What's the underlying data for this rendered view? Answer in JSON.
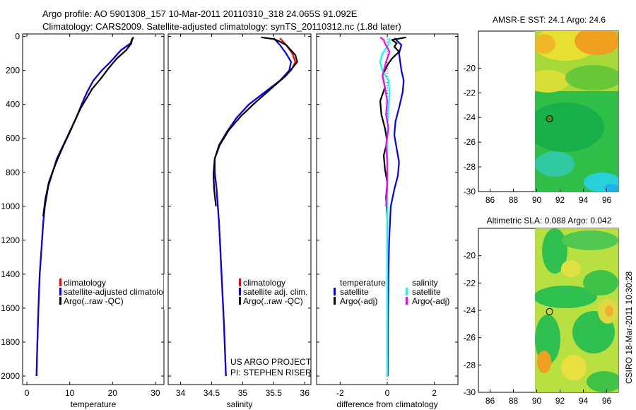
{
  "header": {
    "line1": "Argo profile: AO 5901308_157 10-Mar-2011 20110310_318 24.065S 91.092E",
    "line2": "Climatology: CARS2009. Satellite-adjusted climatology: synTS_20110312.nc (1.8d later)"
  },
  "side_label": "CSIRO 18-Mar-2011 10:30:28",
  "credit": {
    "line1": "US ARGO PROJECT",
    "line2": "PI: STEPHEN RISER"
  },
  "colors": {
    "red": "#ff0000",
    "blue": "#0000ff",
    "black": "#000000",
    "cyan": "#00ffff",
    "magenta": "#ff00ff"
  },
  "chart_data": [
    {
      "id": "temperature",
      "type": "line",
      "xlabel": "temperature",
      "xlim": [
        -1,
        32
      ],
      "xticks": [
        0,
        10,
        20,
        30
      ],
      "ylim": [
        2050,
        -15
      ],
      "yticks": [
        0,
        200,
        400,
        600,
        800,
        1000,
        1200,
        1400,
        1600,
        1800,
        2000
      ],
      "legend": [
        "climatology",
        "satellite-adjusted climatology",
        "Argo(..raw -QC)"
      ],
      "series": [
        {
          "name": "climatology",
          "color": "#ff0000",
          "x": [
            24.6,
            24.2,
            22,
            19.5,
            17.5,
            15.5,
            14,
            12.8,
            11.5,
            10,
            8.5,
            7,
            6,
            5,
            4.2,
            3.8,
            3.4,
            3,
            2.7,
            2.45,
            2.25
          ],
          "y": [
            10,
            40,
            80,
            150,
            200,
            260,
            330,
            400,
            480,
            560,
            640,
            720,
            800,
            880,
            1000,
            1100,
            1250,
            1400,
            1600,
            1800,
            2000
          ]
        },
        {
          "name": "satellite-adjusted climatology",
          "color": "#0000ff",
          "x": [
            24.8,
            24.3,
            22,
            19.5,
            17.5,
            15.5,
            14,
            12.8,
            11.5,
            10,
            8.5,
            7,
            6,
            5,
            4.2,
            3.8,
            3.4,
            3,
            2.7,
            2.45,
            2.25
          ],
          "y": [
            5,
            40,
            80,
            150,
            200,
            260,
            330,
            400,
            480,
            560,
            640,
            720,
            800,
            880,
            1000,
            1100,
            1250,
            1400,
            1600,
            1800,
            2000
          ]
        },
        {
          "name": "Argo(..raw -QC)",
          "color": "#000000",
          "x": [
            24.9,
            24.5,
            24.4,
            23.2,
            21,
            19,
            17.2,
            15.2,
            13.8,
            12.6,
            11.3,
            9.9,
            8.4,
            7.2,
            6.1,
            5.1,
            4.3,
            3.8
          ],
          "y": [
            5,
            20,
            40,
            80,
            130,
            190,
            250,
            310,
            370,
            420,
            490,
            570,
            650,
            720,
            790,
            860,
            960,
            1060
          ]
        }
      ]
    },
    {
      "id": "salinity",
      "type": "line",
      "xlabel": "salinity",
      "xlim": [
        33.8,
        36.1
      ],
      "xticks": [
        34,
        34.5,
        35,
        35.5,
        36
      ],
      "ylim": [
        2050,
        -15
      ],
      "legend": [
        "climatology",
        "satellite adj. clim.",
        "Argo(..raw -QC)"
      ],
      "series": [
        {
          "name": "climatology",
          "color": "#ff0000",
          "x": [
            35.6,
            35.7,
            35.8,
            35.85,
            35.78,
            35.6,
            35.35,
            35.1,
            34.9,
            34.75,
            34.62,
            34.55,
            34.55,
            34.58,
            34.62,
            34.66,
            34.7,
            34.73
          ],
          "y": [
            10,
            50,
            100,
            150,
            200,
            260,
            330,
            400,
            480,
            560,
            640,
            720,
            800,
            900,
            1100,
            1400,
            1700,
            2000
          ]
        },
        {
          "name": "satellite adj. clim.",
          "color": "#0000ff",
          "x": [
            35.5,
            35.6,
            35.7,
            35.78,
            35.75,
            35.6,
            35.35,
            35.1,
            34.9,
            34.75,
            34.62,
            34.55,
            34.55,
            34.58,
            34.62,
            34.66,
            34.7,
            34.73
          ],
          "y": [
            10,
            50,
            100,
            150,
            200,
            260,
            330,
            400,
            480,
            560,
            640,
            720,
            800,
            900,
            1100,
            1400,
            1700,
            2000
          ]
        },
        {
          "name": "Argo(..raw -QC)",
          "color": "#000000",
          "x": [
            35.3,
            35.5,
            35.6,
            35.7,
            35.85,
            35.88,
            35.7,
            35.45,
            35.2,
            34.97,
            34.78,
            34.63,
            34.55,
            34.53,
            34.54,
            34.57
          ],
          "y": [
            5,
            15,
            30,
            50,
            110,
            150,
            230,
            310,
            390,
            470,
            550,
            640,
            720,
            810,
            900,
            1000
          ]
        }
      ]
    },
    {
      "id": "difference",
      "type": "line",
      "xlabel": "difference from climatology",
      "xlim": [
        -3,
        3
      ],
      "xticks": [
        -2,
        0,
        2
      ],
      "ylim": [
        2050,
        -15
      ],
      "legend_groups": [
        {
          "title": "temperature",
          "items": [
            "satellite",
            "Argo(-adj)"
          ]
        },
        {
          "title": "salinity",
          "items": [
            "satellite",
            "Argo(-adj)"
          ]
        }
      ],
      "series": [
        {
          "name": "temperature satellite",
          "color": "#0000ff",
          "x": [
            0.3,
            0.6,
            0.5,
            0.55,
            0.6,
            0.7,
            0.65,
            0.5,
            0.35,
            0.3,
            0.4,
            0.5,
            0.45,
            0.3,
            0.15,
            0.08,
            0.05,
            0.03,
            0.02
          ],
          "y": [
            10,
            50,
            100,
            150,
            200,
            260,
            330,
            420,
            500,
            580,
            660,
            740,
            820,
            900,
            1000,
            1200,
            1400,
            1700,
            2000
          ]
        },
        {
          "name": "temperature Argo(-adj)",
          "color": "#000000",
          "x": [
            0.8,
            0.2,
            0.4,
            0.3,
            0.5,
            0.2,
            0.0,
            -0.2,
            -0.1,
            -0.3,
            -0.25,
            -0.1,
            0.0,
            -0.15,
            -0.1,
            0.0,
            -0.05,
            0.0
          ],
          "y": [
            5,
            20,
            40,
            60,
            90,
            130,
            170,
            230,
            300,
            380,
            460,
            540,
            620,
            700,
            780,
            860,
            950,
            1060
          ]
        },
        {
          "name": "salinity satellite",
          "color": "#00ffff",
          "x": [
            0.1,
            0.05,
            -0.2,
            -0.3,
            -0.2,
            0.05,
            0.1,
            0.05,
            0.02,
            0.0,
            0.0,
            0.0,
            0.0,
            0.0
          ],
          "y": [
            10,
            50,
            100,
            150,
            200,
            260,
            330,
            420,
            500,
            600,
            800,
            1000,
            1500,
            2000
          ]
        },
        {
          "name": "salinity Argo(-adj)",
          "color": "#ff00ff",
          "x": [
            -0.3,
            -0.15,
            -0.1,
            0.1,
            -0.05,
            -0.2,
            -0.1,
            0.0,
            -0.05,
            0.05,
            -0.05,
            0.0,
            0.0,
            -0.05
          ],
          "y": [
            5,
            20,
            40,
            90,
            150,
            230,
            300,
            380,
            460,
            540,
            640,
            740,
            860,
            1000
          ]
        }
      ]
    },
    {
      "id": "sst_map",
      "type": "heatmap",
      "title": "AMSR-E SST: 24.1 Argo: 24.6",
      "xlim": [
        85,
        97
      ],
      "xticks": [
        86,
        88,
        90,
        92,
        94,
        96
      ],
      "ylim": [
        -30,
        -17
      ],
      "yticks": [
        -20,
        -22,
        -24,
        -26,
        -28,
        -30
      ],
      "data_lon_range": [
        90,
        97
      ],
      "float_position": {
        "lon": 91.1,
        "lat": -24.1
      }
    },
    {
      "id": "sla_map",
      "type": "heatmap",
      "title": "Altimetric SLA: 0.088 Argo: 0.042",
      "xlim": [
        85,
        97
      ],
      "xticks": [
        86,
        88,
        90,
        92,
        94,
        96
      ],
      "ylim": [
        -30,
        -18
      ],
      "yticks": [
        -20,
        -22,
        -24,
        -26,
        -28,
        -30
      ],
      "data_lon_range": [
        90,
        97
      ],
      "float_position": {
        "lon": 91.1,
        "lat": -24.1
      }
    }
  ]
}
